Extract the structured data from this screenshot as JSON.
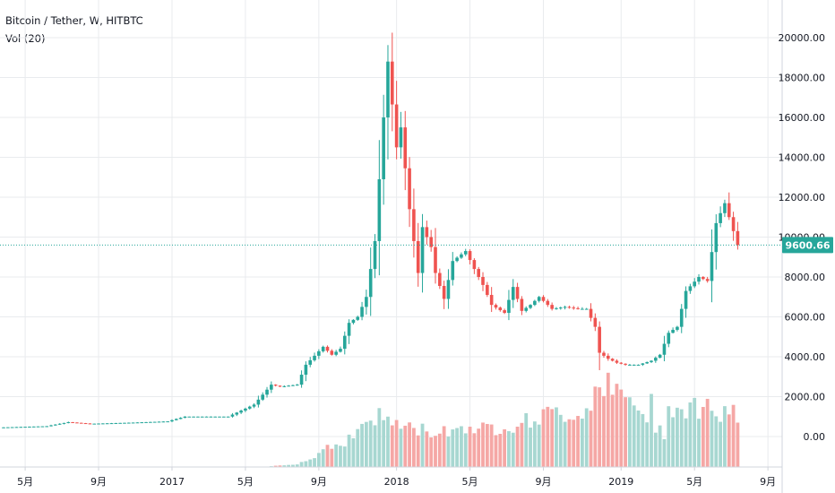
{
  "legend": {
    "symbol": "Bitcoin / Tether",
    "interval": "W",
    "exchange": "HITBTC",
    "volume_label": "Vol (20)"
  },
  "colors": {
    "up": "#26a69a",
    "down": "#ef5350",
    "up_volume": "#a7d7d1",
    "down_volume": "#f5a7a5",
    "grid": "#e9ebee",
    "axis": "#d1d4dc",
    "price_line": "#26a69a"
  },
  "chart_data": {
    "type": "candlestick",
    "title": "Bitcoin / Tether, W, HITBTC",
    "y_ticks": [
      "20000.00",
      "18000.00",
      "16000.00",
      "14000.00",
      "12000.00",
      "10000.00",
      "8000.00",
      "6000.00",
      "4000.00",
      "2000.00",
      "0.00"
    ],
    "y_tick_values": [
      20000,
      18000,
      16000,
      14000,
      12000,
      10000,
      8000,
      6000,
      4000,
      2000,
      0
    ],
    "ylim": [
      -1600,
      22000
    ],
    "x_ticks": [
      {
        "label": "5月",
        "week": 5
      },
      {
        "label": "9月",
        "week": 22
      },
      {
        "label": "2017",
        "week": 39
      },
      {
        "label": "5月",
        "week": 56
      },
      {
        "label": "9月",
        "week": 73
      },
      {
        "label": "2018",
        "week": 91
      },
      {
        "label": "5月",
        "week": 108
      },
      {
        "label": "9月",
        "week": 125
      },
      {
        "label": "2019",
        "week": 143
      },
      {
        "label": "5月",
        "week": 160
      },
      {
        "label": "9月",
        "week": 177
      }
    ],
    "last_price": "9600.66",
    "last_price_value": 9600.66,
    "volume_series": "Vol (20)",
    "anchors": [
      [
        0,
        460
      ],
      [
        10,
        520
      ],
      [
        15,
        720
      ],
      [
        20,
        640
      ],
      [
        30,
        700
      ],
      [
        38,
        760
      ],
      [
        42,
        1000
      ],
      [
        52,
        1000
      ],
      [
        58,
        1600
      ],
      [
        62,
        2600
      ],
      [
        64,
        2500
      ],
      [
        68,
        2600
      ],
      [
        70,
        3600
      ],
      [
        74,
        4500
      ],
      [
        76,
        4100
      ],
      [
        78,
        4400
      ],
      [
        80,
        5700
      ],
      [
        82,
        6000
      ],
      [
        84,
        7000
      ],
      [
        86,
        9800
      ],
      [
        88,
        16000
      ],
      [
        89,
        18800
      ],
      [
        91,
        14500
      ],
      [
        92,
        15500
      ],
      [
        94,
        11400
      ],
      [
        96,
        8200
      ],
      [
        97,
        10500
      ],
      [
        99,
        9500
      ],
      [
        100,
        8200
      ],
      [
        102,
        6900
      ],
      [
        104,
        8800
      ],
      [
        107,
        9300
      ],
      [
        109,
        8400
      ],
      [
        111,
        7600
      ],
      [
        113,
        6600
      ],
      [
        116,
        6200
      ],
      [
        118,
        7500
      ],
      [
        120,
        6300
      ],
      [
        122,
        6600
      ],
      [
        124,
        7000
      ],
      [
        127,
        6400
      ],
      [
        130,
        6500
      ],
      [
        133,
        6400
      ],
      [
        135,
        6400
      ],
      [
        137,
        5500
      ],
      [
        138,
        4200
      ],
      [
        140,
        3900
      ],
      [
        142,
        3700
      ],
      [
        144,
        3600
      ],
      [
        147,
        3600
      ],
      [
        150,
        3800
      ],
      [
        152,
        4100
      ],
      [
        154,
        5200
      ],
      [
        156,
        5500
      ],
      [
        158,
        7300
      ],
      [
        161,
        8000
      ],
      [
        163,
        7800
      ],
      [
        165,
        10700
      ],
      [
        167,
        11700
      ],
      [
        169,
        10300
      ],
      [
        170,
        9600.66
      ]
    ],
    "volume_anchors": [
      [
        0,
        0
      ],
      [
        60,
        0
      ],
      [
        68,
        100
      ],
      [
        72,
        300
      ],
      [
        75,
        700
      ],
      [
        78,
        700
      ],
      [
        82,
        1100
      ],
      [
        84,
        1500
      ],
      [
        88,
        1600
      ],
      [
        92,
        1300
      ],
      [
        96,
        1200
      ],
      [
        100,
        1100
      ],
      [
        104,
        1200
      ],
      [
        108,
        1300
      ],
      [
        112,
        1200
      ],
      [
        116,
        1300
      ],
      [
        120,
        1400
      ],
      [
        124,
        1600
      ],
      [
        128,
        1700
      ],
      [
        132,
        1700
      ],
      [
        134,
        1600
      ],
      [
        136,
        2200
      ],
      [
        137,
        2500
      ],
      [
        139,
        2700
      ],
      [
        141,
        2400
      ],
      [
        143,
        2200
      ],
      [
        145,
        2100
      ],
      [
        147,
        2000
      ],
      [
        149,
        1200
      ],
      [
        150,
        2200
      ],
      [
        151,
        1300
      ],
      [
        153,
        1100
      ],
      [
        154,
        2100
      ],
      [
        156,
        1800
      ],
      [
        158,
        1900
      ],
      [
        162,
        1900
      ],
      [
        164,
        2000
      ],
      [
        166,
        1500
      ],
      [
        168,
        1800
      ],
      [
        170,
        1500
      ]
    ]
  }
}
